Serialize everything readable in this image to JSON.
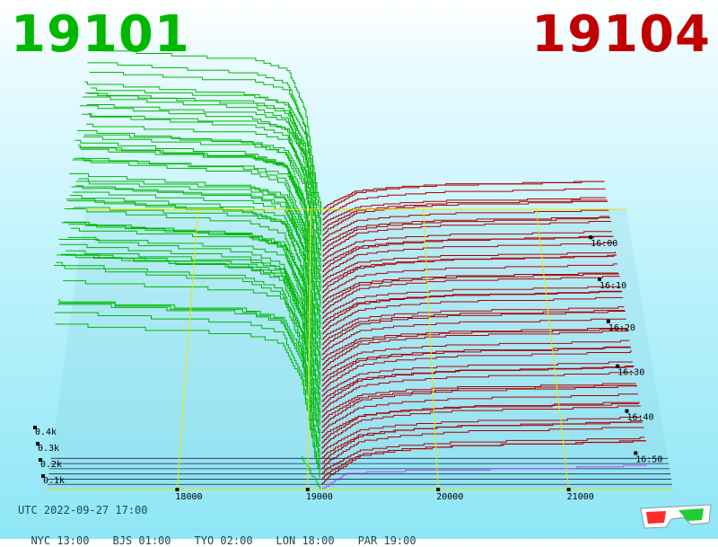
{
  "header": {
    "best_bid": "19101",
    "best_ask": "19104"
  },
  "chart_data": {
    "type": "depth-3d",
    "x_ticks": [
      18000,
      19000,
      20000,
      21000
    ],
    "y_ticks": [
      "0.1k",
      "0.2k",
      "0.3k",
      "0.4k"
    ],
    "y_values": [
      100,
      200,
      300,
      400
    ],
    "time_ticks": [
      "16:00",
      "16:10",
      "16:20",
      "16:30",
      "16:40",
      "16:50"
    ],
    "xlim": [
      17000,
      21800
    ],
    "time_range": [
      "15:52",
      "17:00"
    ],
    "bid_color": "#00b800",
    "ask_color": "#b00000",
    "latest_bid_color": "#00d000",
    "latest_ask_color": "#c040ff",
    "grid_color": "#e8e800",
    "snapshots": 55,
    "bid_profile": [
      [
        17050,
        400
      ],
      [
        18100,
        380
      ],
      [
        18500,
        375
      ],
      [
        18800,
        350
      ],
      [
        18950,
        250
      ],
      [
        19050,
        60
      ],
      [
        19101,
        0
      ]
    ],
    "ask_profile": [
      [
        19104,
        0
      ],
      [
        19150,
        10
      ],
      [
        19400,
        40
      ],
      [
        19700,
        48
      ],
      [
        20200,
        55
      ],
      [
        21000,
        58
      ],
      [
        21600,
        62
      ]
    ],
    "latest_bid_profile": [
      [
        18950,
        60
      ],
      [
        19101,
        0
      ]
    ],
    "latest_ask_profile": [
      [
        19104,
        0
      ],
      [
        19300,
        30
      ],
      [
        19800,
        35
      ],
      [
        21000,
        40
      ],
      [
        21600,
        45
      ]
    ]
  },
  "footer": {
    "utc": "UTC 2022-09-27 17:00",
    "zones": [
      {
        "label": "NYC 13:00"
      },
      {
        "label": "BJS 01:00"
      },
      {
        "label": "TYO 02:00"
      },
      {
        "label": "LON 18:00"
      },
      {
        "label": "PAR 19:00"
      }
    ]
  }
}
